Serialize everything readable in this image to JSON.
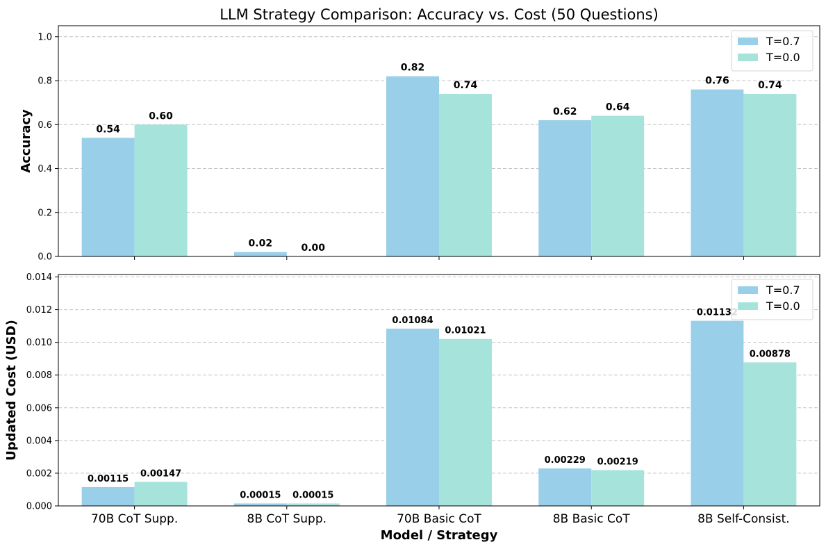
{
  "title": "LLM Strategy Comparison: Accuracy vs. Cost (50 Questions)",
  "colors": {
    "t07": "#9acfea",
    "t00": "#a6e4db"
  },
  "chart_data": [
    {
      "type": "bar",
      "categories": [
        "70B CoT Supp.",
        "8B CoT Supp.",
        "70B Basic CoT",
        "8B Basic CoT",
        "8B Self-Consist."
      ],
      "series": [
        {
          "name": "T=0.7",
          "values": [
            0.54,
            0.02,
            0.82,
            0.62,
            0.76
          ],
          "labels": [
            "0.54",
            "0.02",
            "0.82",
            "0.62",
            "0.76"
          ]
        },
        {
          "name": "T=0.0",
          "values": [
            0.6,
            0.0,
            0.74,
            0.64,
            0.74
          ],
          "labels": [
            "0.60",
            "0.00",
            "0.74",
            "0.64",
            "0.74"
          ]
        }
      ],
      "title": "LLM Strategy Comparison: Accuracy vs. Cost (50 Questions)",
      "xlabel": "",
      "ylabel": "Accuracy",
      "ylim": [
        0,
        1.05
      ],
      "yticks": [
        "0.0",
        "0.2",
        "0.4",
        "0.6",
        "0.8",
        "1.0"
      ],
      "grid": true,
      "legend": "top-right"
    },
    {
      "type": "bar",
      "categories": [
        "70B CoT Supp.",
        "8B CoT Supp.",
        "70B Basic CoT",
        "8B Basic CoT",
        "8B Self-Consist."
      ],
      "series": [
        {
          "name": "T=0.7",
          "values": [
            0.00115,
            0.00015,
            0.01084,
            0.00229,
            0.01132
          ],
          "labels": [
            "0.00115",
            "0.00015",
            "0.01084",
            "0.00229",
            "0.01132"
          ]
        },
        {
          "name": "T=0.0",
          "values": [
            0.00147,
            0.00015,
            0.01021,
            0.00219,
            0.00878
          ],
          "labels": [
            "0.00147",
            "0.00015",
            "0.01021",
            "0.00219",
            "0.00878"
          ]
        }
      ],
      "title": "",
      "xlabel": "Model / Strategy",
      "ylabel": "Updated Cost (USD)",
      "ylim": [
        0,
        0.01415
      ],
      "yticks": [
        "0.000",
        "0.002",
        "0.004",
        "0.006",
        "0.008",
        "0.010",
        "0.012",
        "0.014"
      ],
      "grid": true,
      "legend": "top-right"
    }
  ]
}
